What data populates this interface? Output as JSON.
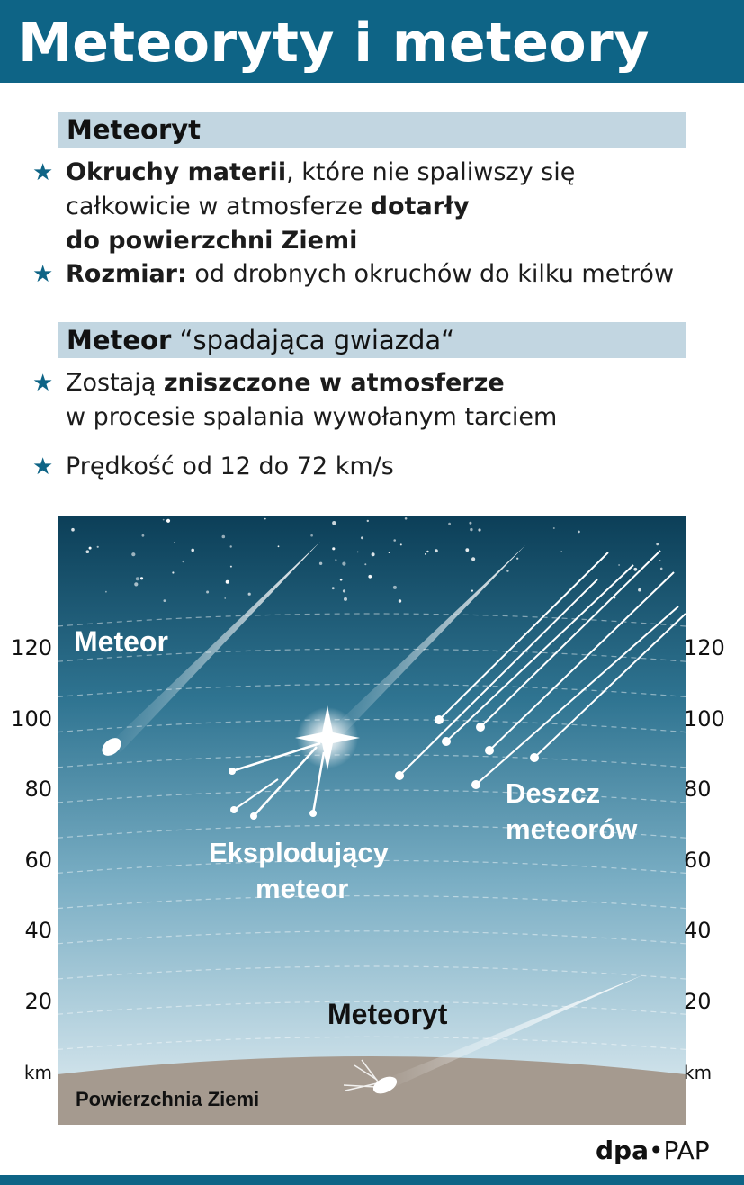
{
  "title": "Meteoryty i meteory",
  "sections": {
    "meteoryt": {
      "heading": "Meteoryt",
      "bullets": [
        {
          "lines": [
            [
              {
                "t": "Okruchy materii",
                "b": true
              },
              {
                "t": ", które nie spaliwszy się",
                "b": false
              }
            ],
            [
              {
                "t": "całkowicie w atmosferze ",
                "b": false
              },
              {
                "t": "dotarły",
                "b": true
              }
            ],
            [
              {
                "t": "do powierzchni Ziemi",
                "b": true
              }
            ]
          ]
        },
        {
          "lines": [
            [
              {
                "t": "Rozmiar:",
                "b": true
              },
              {
                "t": " od drobnych okruchów do kilku metrów",
                "b": false
              }
            ]
          ]
        }
      ]
    },
    "meteor": {
      "heading": "Meteor",
      "subheading": "“spadająca gwiazda“",
      "bullets": [
        {
          "lines": [
            [
              {
                "t": "Zostają ",
                "b": false
              },
              {
                "t": "zniszczone w atmosferze",
                "b": true
              }
            ],
            [
              {
                "t": "w procesie spalania wywołanym tarciem",
                "b": false
              }
            ]
          ]
        },
        {
          "lines": [
            [
              {
                "t": "Prędkość od 12 do 72 km/s",
                "b": false
              }
            ]
          ]
        }
      ]
    }
  },
  "diagram": {
    "altitude_ticks": [
      "120",
      "100",
      "80",
      "60",
      "40",
      "20"
    ],
    "unit": "km",
    "labels": {
      "meteor": "Meteor",
      "exploding_1": "Eksplodujący",
      "exploding_2": "meteor",
      "shower_1": "Deszcz",
      "shower_2": "meteorów",
      "meteorite": "Meteoryt",
      "ground": "Powierzchnia Ziemi"
    },
    "colors": {
      "sky_top": "#0c3f58",
      "sky_bottom": "#e3eef3",
      "ground": "#a59a8f",
      "accent": "#0e6486"
    }
  },
  "credit": {
    "part1": "dpa",
    "part2": "PAP"
  }
}
